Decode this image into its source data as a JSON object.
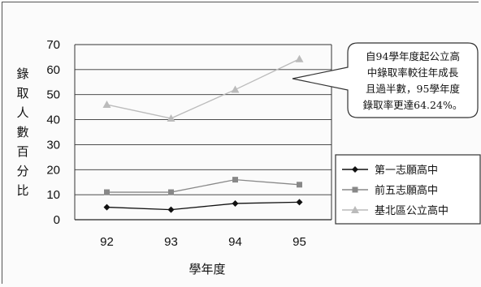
{
  "chart_data": {
    "type": "line",
    "categories": [
      "92",
      "93",
      "94",
      "95"
    ],
    "ylim": [
      0,
      70
    ],
    "yticks": [
      0,
      10,
      20,
      30,
      40,
      50,
      60,
      70
    ],
    "grid": true,
    "ylabel": "錄取人數百分比",
    "xlabel": "學年度",
    "legend_position": "right",
    "series": [
      {
        "name": "第一志願高中",
        "values": [
          5,
          4,
          6.5,
          7
        ],
        "color": "#111111",
        "marker": "diamond"
      },
      {
        "name": "前五志願高中",
        "values": [
          11,
          11,
          16,
          14
        ],
        "color": "#888888",
        "marker": "square"
      },
      {
        "name": "基北區公立高中",
        "values": [
          46,
          40.5,
          52,
          64.24
        ],
        "color": "#bbbbbb",
        "marker": "triangle"
      }
    ],
    "annotation": [
      "自94學年度起公立高",
      "中錄取率較往年成長",
      "且過半數，95學年度",
      "錄取率更達64.24%。"
    ]
  }
}
